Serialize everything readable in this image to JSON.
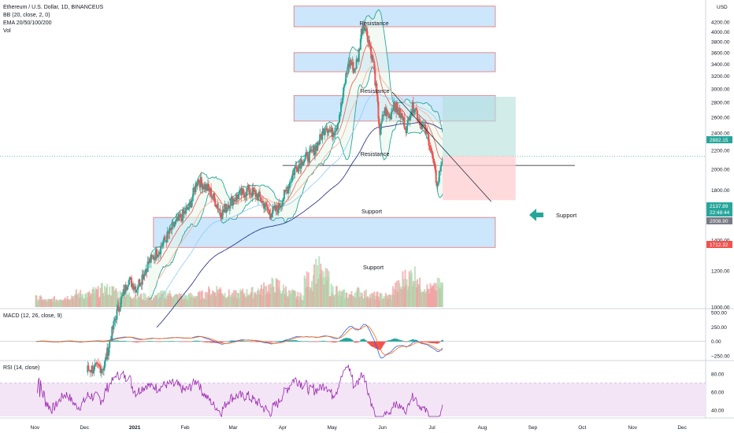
{
  "title": "Ethereum / U.S. Dollar, 1D, BINANCEUS",
  "indicators": {
    "bb": "BB (20, close, 2, 0)",
    "ema": "EMA 20/50/100/200",
    "vol": "Vol",
    "macd": "MACD (12, 26, close, 9)",
    "rsi": "RSI (14, close)"
  },
  "currency_label": "USD",
  "colors": {
    "up": "#26a69a",
    "down": "#ef5350",
    "zone_fill": "#bbdefb",
    "zone_border": "#e57373",
    "bb_line": "#26a69a",
    "bb_fill": "#e8f5e9",
    "rsi_line": "#9c27b0",
    "rsi_band": "#f3e5f5",
    "macd_line": "#2962ff",
    "signal_line": "#ff6d00",
    "ema_200": "#1a237e",
    "price_line": "#26a69a"
  },
  "zone_labels": {
    "resistance_1": "Resistance",
    "resistance_2": "Resistance",
    "resistance_3": "Resistance",
    "support_line": "Support",
    "support_zone": "Support",
    "arrow_label": "Support"
  },
  "price_tags": {
    "target": "2882.15",
    "last": "2137.89",
    "countdown": "22:48:44",
    "line": "2008.90",
    "stop": "1712.32"
  },
  "chart_data": [
    {
      "type": "line",
      "name": "price",
      "title": "Ethereum / U.S. Dollar, 1D, BINANCEUS",
      "y_scale": "log",
      "ylim": [
        1000,
        4600
      ],
      "y_ticks": [
        1000,
        1200,
        1400,
        1600,
        1800,
        2000,
        2200,
        2400,
        2600,
        2800,
        3000,
        3200,
        3400,
        3600,
        3800,
        4000,
        4200
      ],
      "x_ticks": [
        "Nov",
        "Dec",
        "2021",
        "Feb",
        "Mar",
        "Apr",
        "May",
        "Jun",
        "Jul",
        "Aug",
        "Sep",
        "Oct",
        "Nov",
        "Dec"
      ],
      "x_tick_positions": [
        0,
        61,
        123,
        185,
        244,
        305,
        366,
        428,
        489,
        551,
        613,
        674,
        736,
        797
      ],
      "x_range": [
        -43,
        826
      ],
      "price_x": [
        65,
        85,
        100,
        115,
        125,
        140,
        155,
        170,
        190,
        200,
        215,
        230,
        240,
        250,
        262,
        275,
        290,
        300,
        310,
        320,
        330,
        340,
        350,
        358,
        365,
        372,
        378,
        383,
        388,
        393,
        398,
        402,
        405,
        410,
        413,
        415,
        417,
        420,
        425,
        430,
        433,
        437,
        442,
        446,
        452,
        458,
        462,
        468,
        472,
        477,
        482,
        486,
        491,
        494,
        496,
        498,
        500,
        502
      ],
      "price_y": [
        730,
        740,
        960,
        1150,
        1100,
        1250,
        1350,
        1500,
        1650,
        1900,
        1800,
        1600,
        1700,
        1750,
        1800,
        1750,
        1600,
        1650,
        1800,
        2000,
        2100,
        2150,
        2300,
        2500,
        2400,
        2500,
        2800,
        3200,
        3450,
        3300,
        3500,
        4000,
        4200,
        3900,
        3700,
        3500,
        3400,
        3000,
        2400,
        2700,
        2650,
        2600,
        2800,
        2700,
        2600,
        2450,
        2700,
        2750,
        2600,
        2500,
        2400,
        2300,
        2050,
        1900,
        1850,
        1950,
        2050,
        2137
      ],
      "volume": [
        20,
        15,
        18,
        22,
        25,
        30,
        28,
        35,
        40,
        38,
        30,
        28,
        26,
        24,
        22,
        28,
        30,
        25,
        24,
        26,
        28,
        35,
        40,
        30,
        28,
        32,
        34,
        38,
        45,
        50,
        40,
        30,
        25,
        60,
        85,
        65,
        40,
        30,
        28,
        35,
        30,
        26,
        25,
        24,
        28,
        40,
        45,
        30,
        25,
        30
      ]
    },
    {
      "type": "area",
      "name": "zones",
      "resistance_zones": [
        [
          4100,
          4550
        ],
        [
          3270,
          3600
        ],
        [
          2550,
          2900
        ]
      ],
      "support_zone": [
        1350,
        1570
      ],
      "support_line": 2040,
      "target_price": 2882.15,
      "stop_price": 1712.32,
      "last_price": 2137.89
    },
    {
      "type": "line",
      "name": "MACD (12, 26, close, 9)",
      "ylim": [
        -290,
        540
      ],
      "y_ticks": [
        "500.00",
        "250.00",
        "0.00",
        "−250.00"
      ],
      "y_tick_values": [
        500,
        250,
        0,
        -250
      ]
    },
    {
      "type": "line",
      "name": "RSI (14, close)",
      "ylim": [
        33,
        93
      ],
      "y_ticks": [
        "80.00",
        "60.00",
        "40.00"
      ],
      "y_tick_values": [
        80,
        60,
        40
      ],
      "band": [
        30,
        70
      ]
    }
  ]
}
